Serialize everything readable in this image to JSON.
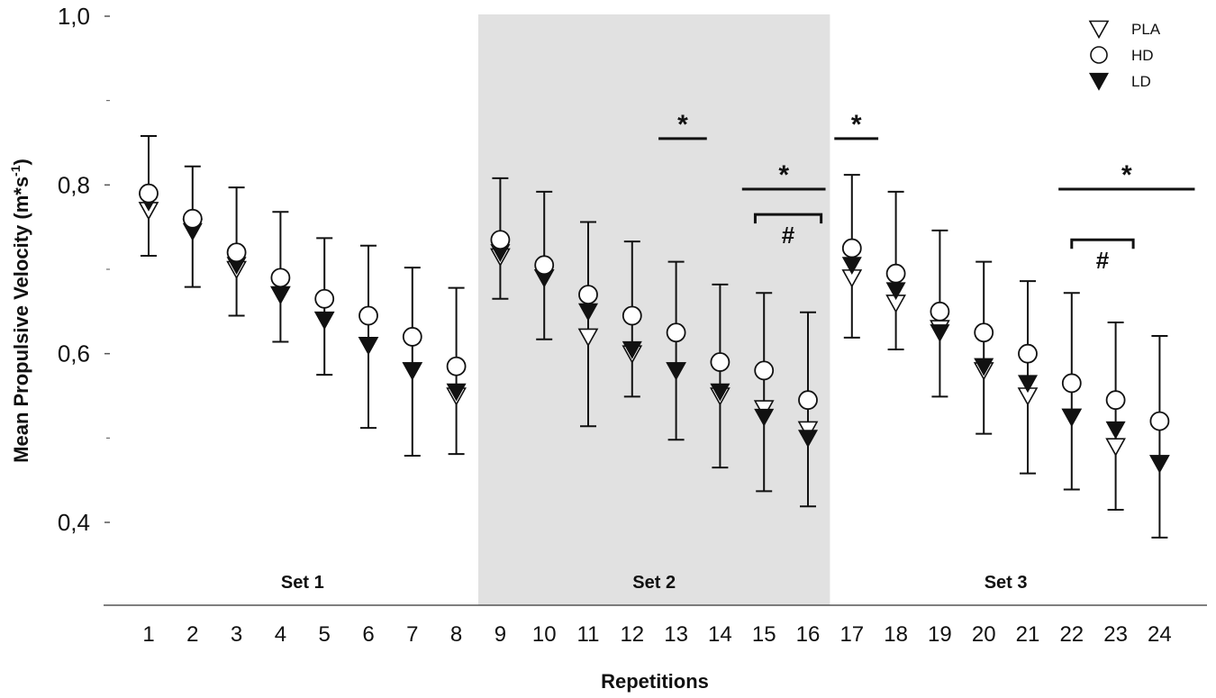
{
  "chart_data": {
    "type": "scatter",
    "xlabel": "Repetitions",
    "ylabel": "Mean Propulsive Velocity (m*s",
    "ylabel_sup": "-1",
    "ylabel_close": ")",
    "ylim": [
      0.35,
      1.0
    ],
    "yticks": [
      "1,0",
      "0,8",
      "0,6",
      "0,4"
    ],
    "ytick_values": [
      1.0,
      0.8,
      0.6,
      0.4
    ],
    "categories": [
      "1",
      "2",
      "3",
      "4",
      "5",
      "6",
      "7",
      "8",
      "9",
      "10",
      "11",
      "12",
      "13",
      "14",
      "15",
      "16",
      "17",
      "18",
      "19",
      "20",
      "21",
      "22",
      "23",
      "24"
    ],
    "legend": {
      "position": "top-right"
    },
    "series": [
      {
        "name": "PLA",
        "marker": "triangle-down-open",
        "values": [
          0.77,
          0.75,
          0.7,
          0.67,
          0.64,
          0.61,
          0.58,
          0.55,
          0.715,
          0.69,
          0.62,
          0.6,
          0.58,
          0.55,
          0.535,
          0.51,
          0.69,
          0.66,
          0.63,
          0.58,
          0.55,
          0.525,
          0.49,
          0.47
        ]
      },
      {
        "name": "HD",
        "marker": "circle-open",
        "values": [
          0.79,
          0.76,
          0.72,
          0.69,
          0.665,
          0.645,
          0.62,
          0.585,
          0.735,
          0.705,
          0.67,
          0.645,
          0.625,
          0.59,
          0.58,
          0.545,
          0.725,
          0.695,
          0.65,
          0.625,
          0.6,
          0.565,
          0.545,
          0.52
        ]
      },
      {
        "name": "LD",
        "marker": "triangle-down-filled",
        "values": [
          0.78,
          0.745,
          0.705,
          0.67,
          0.64,
          0.61,
          0.58,
          0.555,
          0.72,
          0.69,
          0.65,
          0.605,
          0.58,
          0.555,
          0.525,
          0.5,
          0.705,
          0.675,
          0.625,
          0.585,
          0.565,
          0.525,
          0.51,
          0.47
        ]
      }
    ],
    "error_bar_upper": [
      0.858,
      0.822,
      0.797,
      0.768,
      0.737,
      0.728,
      0.702,
      0.678,
      0.808,
      0.792,
      0.756,
      0.733,
      0.709,
      0.682,
      0.672,
      0.649,
      0.812,
      0.792,
      0.746,
      0.709,
      0.686,
      0.672,
      0.637,
      0.621
    ],
    "error_bar_lower": [
      0.716,
      0.679,
      0.645,
      0.614,
      0.575,
      0.512,
      0.479,
      0.481,
      0.665,
      0.617,
      0.514,
      0.549,
      0.498,
      0.465,
      0.437,
      0.419,
      0.619,
      0.605,
      0.549,
      0.505,
      0.458,
      0.439,
      0.415,
      0.382
    ],
    "shaded_region": {
      "from": 8.5,
      "to": 16.5
    },
    "set_labels": [
      {
        "text": "Set 1",
        "x": 4.5
      },
      {
        "text": "Set 2",
        "x": 12.5
      },
      {
        "text": "Set 3",
        "x": 20.5
      }
    ],
    "annotations": [
      {
        "type": "star",
        "text": "*",
        "from": 12.6,
        "to": 13.7,
        "y": 0.855
      },
      {
        "type": "star",
        "text": "*",
        "from": 16.6,
        "to": 17.6,
        "y": 0.855
      },
      {
        "type": "star",
        "text": "*",
        "from": 14.5,
        "to": 16.4,
        "y": 0.795
      },
      {
        "type": "bracket",
        "text": "#",
        "from": 14.8,
        "to": 16.3,
        "y": 0.765
      },
      {
        "type": "star",
        "text": "*",
        "from": 21.7,
        "to": 24.8,
        "y": 0.795
      },
      {
        "type": "bracket",
        "text": "#",
        "from": 22.0,
        "to": 23.4,
        "y": 0.735
      }
    ]
  }
}
